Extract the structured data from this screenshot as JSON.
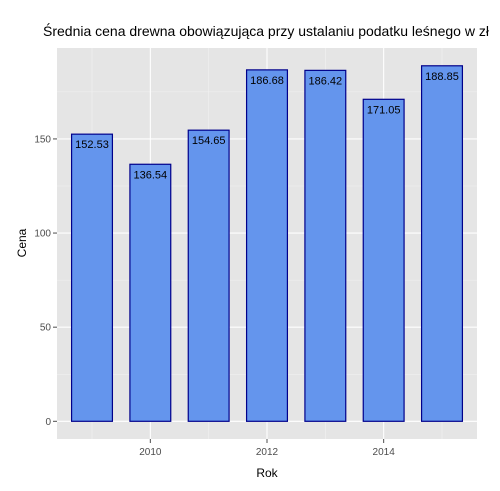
{
  "chart_data": {
    "type": "bar",
    "title": "Średnia cena drewna obowiązująca przy ustalaniu podatku leśnego w zł",
    "xlabel": "Rok",
    "ylabel": "Cena",
    "x": [
      2009,
      2010,
      2011,
      2012,
      2013,
      2014,
      2015
    ],
    "values": [
      152.53,
      136.54,
      154.65,
      186.68,
      186.42,
      171.05,
      188.85
    ],
    "value_labels": [
      "152.53",
      "136.54",
      "154.65",
      "186.68",
      "186.42",
      "171.05",
      "188.85"
    ],
    "x_ticks": [
      "2010",
      "2012",
      "2014"
    ],
    "y_ticks": [
      "0",
      "50",
      "100",
      "150"
    ],
    "xlim": [
      2008.4,
      2015.6
    ],
    "ylim": [
      -9.4,
      198.3
    ],
    "grid": true,
    "colors": {
      "panel": "#e5e5e5",
      "grid": "#ffffff",
      "bar_fill": "#6495ed",
      "bar_stroke": "#00008b"
    }
  }
}
